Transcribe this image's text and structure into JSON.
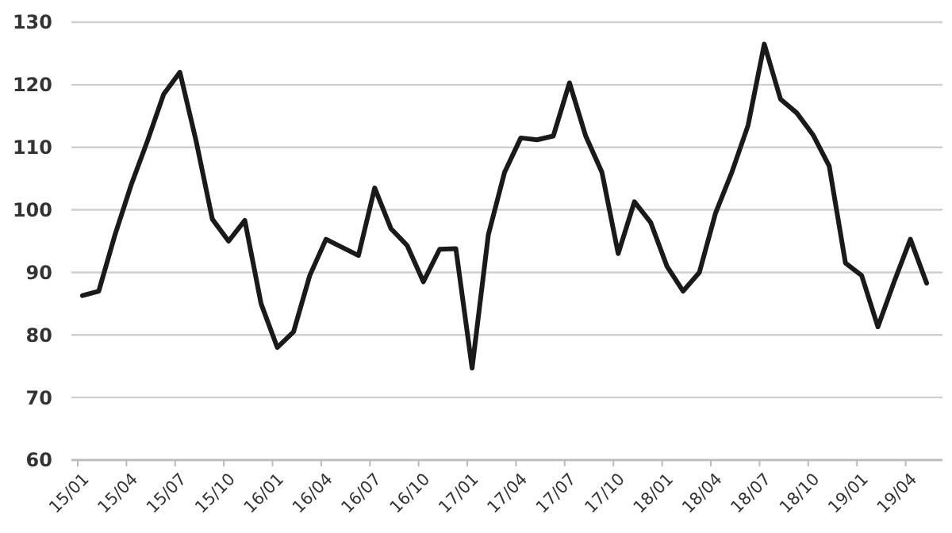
{
  "chart_data": {
    "type": "line",
    "categories": [
      "15/01",
      null,
      null,
      "15/04",
      null,
      null,
      "15/07",
      null,
      null,
      "15/10",
      null,
      null,
      "16/01",
      null,
      null,
      "16/04",
      null,
      null,
      "16/07",
      null,
      null,
      "16/10",
      null,
      null,
      "17/01",
      null,
      null,
      "17/04",
      null,
      null,
      "17/07",
      null,
      null,
      "17/10",
      null,
      null,
      "18/01",
      null,
      null,
      "18/04",
      null,
      null,
      "18/07",
      null,
      null,
      "18/10",
      null,
      null,
      "19/01",
      null,
      null,
      "19/04",
      null
    ],
    "series": [
      {
        "color": "#1a1a1a",
        "values": [
          86.3,
          87,
          96,
          104,
          111,
          118.5,
          122,
          111,
          98.5,
          95,
          98.3,
          85,
          78,
          80.5,
          89.5,
          95.3,
          94,
          92.7,
          103.5,
          97,
          94.3,
          88.5,
          93.7,
          93.8,
          74.7,
          96,
          106,
          111.5,
          111.2,
          111.8,
          120.3,
          111.8,
          106,
          93,
          101.3,
          98,
          91,
          87,
          90,
          99.5,
          106,
          113.5,
          126.5,
          117.7,
          115.5,
          112,
          107,
          91.5,
          89.5,
          81.3,
          88.5,
          95.3,
          88.3
        ]
      }
    ],
    "ylim": [
      60,
      130
    ],
    "yticks": [
      60,
      70,
      80,
      90,
      100,
      110,
      120,
      130
    ],
    "grid": "y",
    "marker": "none",
    "line_style": "solid"
  }
}
